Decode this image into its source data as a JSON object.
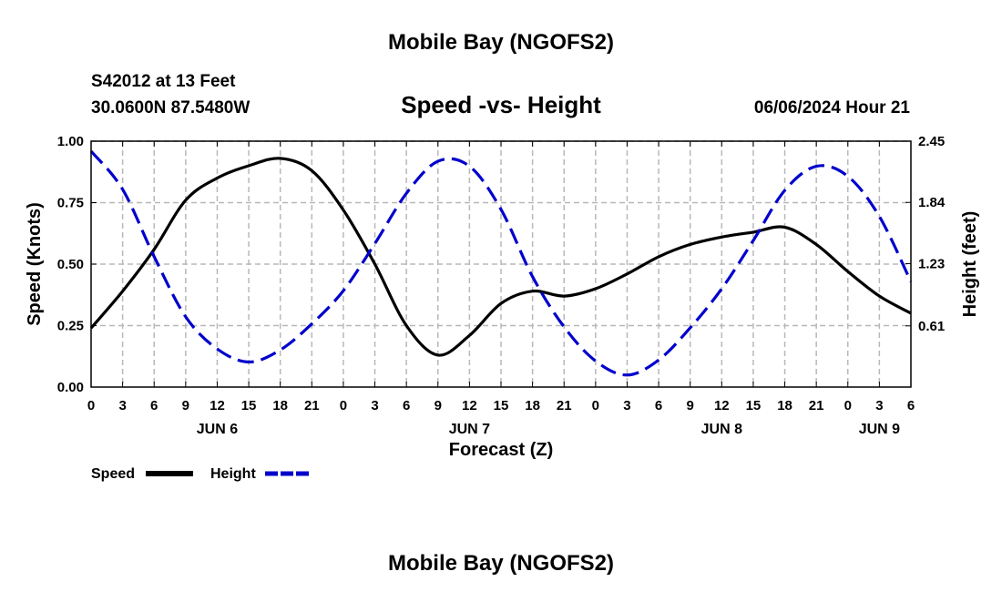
{
  "page": {
    "title_top": "Mobile Bay (NGOFS2)",
    "title_bottom": "Mobile Bay (NGOFS2)",
    "station_line1": "S42012 at 13 Feet",
    "station_line2": "30.0600N  87.5480W",
    "valid_time": "06/06/2024 Hour 21"
  },
  "chart_data": {
    "type": "line",
    "title": "Speed -vs- Height",
    "xlabel": "Forecast (Z)",
    "ylabel_left": "Speed (Knots)",
    "ylabel_right": "Height (feet)",
    "grid": true,
    "legend_position": "bottom-left",
    "x_unit": "hours since JUN 6 00Z",
    "xlim": [
      0,
      78
    ],
    "x_tick_labels": [
      "0",
      "3",
      "6",
      "9",
      "12",
      "15",
      "18",
      "21",
      "0",
      "3",
      "6",
      "9",
      "12",
      "15",
      "18",
      "21",
      "0",
      "3",
      "6",
      "9",
      "12",
      "15",
      "18",
      "21",
      "0",
      "3",
      "6"
    ],
    "x_date_labels": [
      {
        "label": "JUN 6",
        "x": 12
      },
      {
        "label": "JUN 7",
        "x": 36
      },
      {
        "label": "JUN 8",
        "x": 60
      },
      {
        "label": "JUN 9",
        "x": 75
      }
    ],
    "ylim_left": [
      0,
      1
    ],
    "y_ticks_left": [
      "0.00",
      "0.25",
      "0.50",
      "0.75",
      "1.00"
    ],
    "ylim_right": [
      0,
      2.45
    ],
    "y_ticks_right": [
      "0.61",
      "1.23",
      "1.84",
      "2.45"
    ],
    "y_ticks_right_values": [
      0.61,
      1.23,
      1.84,
      2.45
    ],
    "series": [
      {
        "name": "Speed",
        "axis": "left",
        "color": "#000000",
        "dash": "solid",
        "x": [
          0,
          3,
          6,
          9,
          12,
          15,
          18,
          21,
          24,
          27,
          30,
          33,
          36,
          39,
          42,
          45,
          48,
          51,
          54,
          57,
          60,
          63,
          66,
          69,
          72,
          75,
          78
        ],
        "values": [
          0.24,
          0.39,
          0.56,
          0.76,
          0.85,
          0.9,
          0.93,
          0.88,
          0.72,
          0.5,
          0.25,
          0.13,
          0.21,
          0.34,
          0.39,
          0.37,
          0.4,
          0.46,
          0.53,
          0.58,
          0.61,
          0.63,
          0.65,
          0.58,
          0.47,
          0.37,
          0.3
        ]
      },
      {
        "name": "Height",
        "axis": "right",
        "color": "#0000cc",
        "dash": "dashed",
        "x": [
          0,
          3,
          6,
          9,
          12,
          15,
          18,
          21,
          24,
          27,
          30,
          33,
          36,
          39,
          42,
          45,
          48,
          51,
          54,
          57,
          60,
          63,
          66,
          69,
          72,
          75,
          78
        ],
        "values": [
          2.35,
          1.97,
          1.3,
          0.7,
          0.38,
          0.25,
          0.37,
          0.63,
          0.96,
          1.43,
          1.93,
          2.25,
          2.2,
          1.77,
          1.1,
          0.6,
          0.26,
          0.12,
          0.27,
          0.59,
          0.98,
          1.46,
          1.96,
          2.2,
          2.1,
          1.7,
          1.05
        ]
      }
    ]
  }
}
